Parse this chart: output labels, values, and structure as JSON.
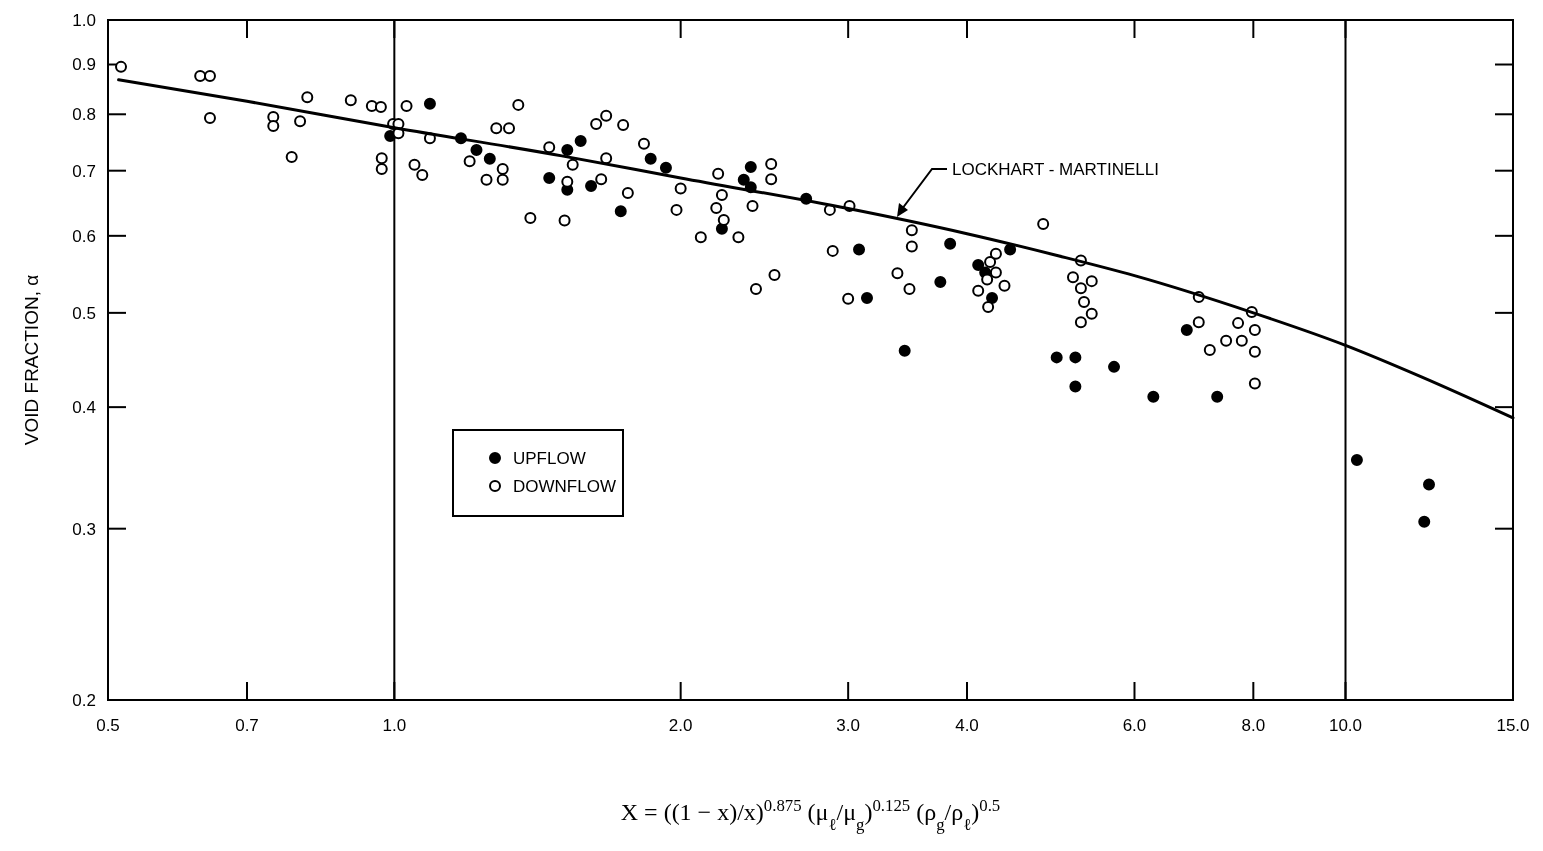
{
  "chart_data": {
    "type": "scatter",
    "xlabel": "X = ((1 − x)/x)$^{0.875}$ (μ$_{ℓ}$/μ$_{g}$)$^{0.125}$ (ρ$_{g}$/ρ$_{ℓ}$)$^{0.5}$",
    "ylabel": "VOID FRACTION, α",
    "log": "xy",
    "xlim": [
      0.5,
      15
    ],
    "ylim": [
      0.2,
      1.0
    ],
    "xticks": [
      0.5,
      0.7,
      {
        "value": 1,
        "label": "1.0"
      },
      {
        "value": 2,
        "label": "2.0"
      },
      {
        "value": 3,
        "label": "3.0"
      },
      {
        "value": 4,
        "label": "4.0"
      },
      {
        "value": 6,
        "label": "6.0"
      },
      {
        "value": 8,
        "label": "8.0"
      },
      {
        "value": 10,
        "label": "10.0"
      },
      {
        "value": 15,
        "label": "15.0"
      }
    ],
    "yticks": [
      0.2,
      0.3,
      0.4,
      0.5,
      0.6,
      0.7,
      0.8,
      0.9,
      {
        "value": 1,
        "label": "1.0"
      }
    ],
    "grid": false,
    "legend": "left",
    "marker": "circle",
    "ref_lines": [
      {
        "axis": "x",
        "value": 1
      },
      {
        "axis": "x",
        "value": 10
      }
    ],
    "annotations": [
      "LOCKHART - MARTINELLI"
    ],
    "series": [
      {
        "name": "UPFLOW",
        "color": "#000000",
        "x": [
          1.09,
          0.99,
          1.175,
          1.22,
          1.26,
          1.455,
          1.52,
          1.52,
          1.57,
          1.61,
          1.73,
          1.86,
          1.93,
          2.21,
          2.33,
          2.37,
          2.37,
          2.71,
          3.08,
          3.14,
          3.44,
          3.75,
          3.84,
          4.11,
          4.18,
          4.25,
          4.44,
          4.97,
          5.2,
          5.2,
          5.71,
          6.28,
          6.81,
          7.33,
          10.28,
          12.1,
          12.24
        ],
        "values": [
          0.82,
          0.76,
          0.756,
          0.735,
          0.72,
          0.688,
          0.735,
          0.669,
          0.751,
          0.675,
          0.636,
          0.72,
          0.705,
          0.61,
          0.685,
          0.706,
          0.673,
          0.655,
          0.581,
          0.518,
          0.457,
          0.538,
          0.589,
          0.56,
          0.55,
          0.518,
          0.581,
          0.45,
          0.45,
          0.42,
          0.44,
          0.41,
          0.48,
          0.41,
          0.353,
          0.305,
          0.333
        ]
      },
      {
        "name": "DOWNFLOW",
        "color": "#ffffff",
        "x": [
          0.516,
          0.625,
          0.64,
          0.64,
          0.746,
          0.746,
          0.78,
          0.796,
          0.81,
          0.9,
          0.947,
          0.968,
          0.97,
          0.97,
          0.997,
          1.01,
          1.03,
          1.01,
          1.05,
          1.07,
          1.09,
          1.2,
          1.25,
          1.28,
          1.32,
          1.3,
          1.3,
          1.35,
          1.39,
          1.455,
          1.51,
          1.52,
          1.54,
          1.63,
          1.67,
          1.67,
          1.65,
          1.74,
          1.76,
          1.83,
          1.98,
          2.0,
          2.1,
          2.19,
          2.18,
          2.21,
          2.22,
          2.3,
          2.38,
          2.4,
          2.49,
          2.49,
          2.51,
          2.87,
          2.89,
          3.01,
          3.0,
          3.38,
          3.48,
          3.5,
          3.5,
          4.11,
          4.2,
          4.21,
          4.23,
          4.29,
          4.29,
          4.38,
          4.81,
          5.17,
          5.27,
          5.27,
          5.27,
          5.31,
          5.41,
          5.41,
          7.01,
          7.01,
          7.2,
          7.49,
          7.71,
          7.78,
          7.97,
          8.03,
          8.03,
          8.03
        ],
        "values": [
          0.895,
          0.876,
          0.876,
          0.793,
          0.795,
          0.778,
          0.723,
          0.787,
          0.833,
          0.827,
          0.816,
          0.814,
          0.721,
          0.703,
          0.782,
          0.782,
          0.816,
          0.765,
          0.71,
          0.693,
          0.756,
          0.716,
          0.685,
          0.774,
          0.774,
          0.703,
          0.685,
          0.818,
          0.626,
          0.74,
          0.622,
          0.682,
          0.71,
          0.782,
          0.797,
          0.721,
          0.686,
          0.78,
          0.664,
          0.746,
          0.638,
          0.671,
          0.598,
          0.695,
          0.641,
          0.661,
          0.623,
          0.598,
          0.644,
          0.529,
          0.711,
          0.686,
          0.547,
          0.638,
          0.579,
          0.644,
          0.517,
          0.549,
          0.529,
          0.608,
          0.585,
          0.527,
          0.541,
          0.507,
          0.564,
          0.575,
          0.55,
          0.533,
          0.617,
          0.544,
          0.566,
          0.53,
          0.489,
          0.513,
          0.539,
          0.499,
          0.519,
          0.489,
          0.458,
          0.468,
          0.488,
          0.468,
          0.501,
          0.48,
          0.456,
          0.423
        ]
      },
      {
        "type": "line",
        "color": "#000000",
        "marker": "none",
        "line_style": "solid",
        "x": [
          0.513,
          0.7,
          1.0,
          1.5,
          2.0,
          3.0,
          4.0,
          5.0,
          6.0,
          8.0,
          10.0,
          12.0,
          15.0
        ],
        "values": [
          0.868,
          0.825,
          0.775,
          0.725,
          0.688,
          0.64,
          0.603,
          0.572,
          0.546,
          0.5,
          0.463,
          0.43,
          0.39
        ]
      }
    ]
  }
}
